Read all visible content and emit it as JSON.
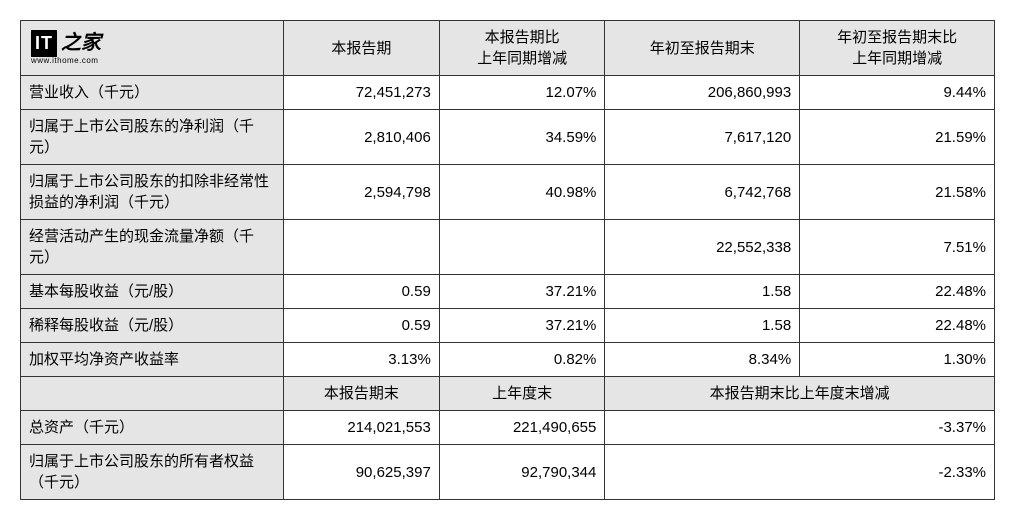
{
  "logo": {
    "it": "IT",
    "cn": "之家",
    "sub": "www.ithome.com"
  },
  "headers1": {
    "c1": "本报告期",
    "c2": "本报告期比\n上年同期增减",
    "c3": "年初至报告期末",
    "c4": "年初至报告期末比\n上年同期增减"
  },
  "rows1": [
    {
      "label": "营业收入（千元）",
      "v1": "72,451,273",
      "v2": "12.07%",
      "v3": "206,860,993",
      "v4": "9.44%",
      "multiline": false
    },
    {
      "label": "归属于上市公司股东的净利润（千元）",
      "v1": "2,810,406",
      "v2": "34.59%",
      "v3": "7,617,120",
      "v4": "21.59%",
      "multiline": true
    },
    {
      "label": "归属于上市公司股东的扣除非经常性损益的净利润（千元）",
      "v1": "2,594,798",
      "v2": "40.98%",
      "v3": "6,742,768",
      "v4": "21.58%",
      "multiline": true
    },
    {
      "label": "经营活动产生的现金流量净额（千元）",
      "v1": "",
      "v2": "",
      "v3": "22,552,338",
      "v4": "7.51%",
      "multiline": true
    },
    {
      "label": "基本每股收益（元/股）",
      "v1": "0.59",
      "v2": "37.21%",
      "v3": "1.58",
      "v4": "22.48%",
      "multiline": false
    },
    {
      "label": "稀释每股收益（元/股）",
      "v1": "0.59",
      "v2": "37.21%",
      "v3": "1.58",
      "v4": "22.48%",
      "multiline": false
    },
    {
      "label": "加权平均净资产收益率",
      "v1": "3.13%",
      "v2": "0.82%",
      "v3": "8.34%",
      "v4": "1.30%",
      "multiline": false
    }
  ],
  "headers2": {
    "c1": "本报告期末",
    "c2": "上年度末",
    "c3": "本报告期末比上年度末增减"
  },
  "rows2": [
    {
      "label": "总资产（千元）",
      "v1": "214,021,553",
      "v2": "221,490,655",
      "v3": "-3.37%",
      "multiline": false
    },
    {
      "label": "归属于上市公司股东的所有者权益（千元）",
      "v1": "90,625,397",
      "v2": "92,790,344",
      "v3": "-2.33%",
      "multiline": true
    }
  ],
  "colwidths": {
    "c0": "27%",
    "c1": "16%",
    "c2": "17%",
    "c3": "20%",
    "c4": "20%"
  }
}
